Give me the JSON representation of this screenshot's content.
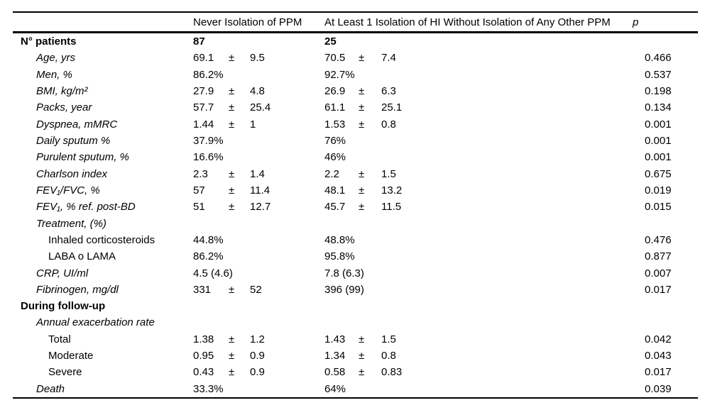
{
  "colors": {
    "background": "#ffffff",
    "text": "#000000",
    "rule": "#000000"
  },
  "table": {
    "headers": {
      "col1": "",
      "col2": "Never Isolation of PPM",
      "col3": "At Least 1 Isolation of HI Without Isolation of Any Other PPM",
      "p": "p"
    },
    "rows": [
      {
        "label": "N° patients",
        "style": "bold",
        "indent": 0,
        "values_bold": true,
        "c2": {
          "val": "87"
        },
        "c3": {
          "val": "25"
        },
        "p": ""
      },
      {
        "label": "Age, yrs",
        "style": "italic",
        "indent": 1,
        "c2": {
          "val": "69.1",
          "pm": "±",
          "sd": "9.5"
        },
        "c3": {
          "val": "70.5",
          "pm": "±",
          "sd": "7.4"
        },
        "p": "0.466"
      },
      {
        "label": "Men, %",
        "style": "italic",
        "indent": 1,
        "c2": {
          "val": "86.2%"
        },
        "c3": {
          "val": "92.7%"
        },
        "p": "0.537"
      },
      {
        "label": "BMI, kg/m²",
        "style": "italic",
        "indent": 1,
        "c2": {
          "val": "27.9",
          "pm": "±",
          "sd": "4.8"
        },
        "c3": {
          "val": "26.9",
          "pm": "±",
          "sd": "6.3"
        },
        "p": "0.198"
      },
      {
        "label": "Packs, year",
        "style": "italic",
        "indent": 1,
        "c2": {
          "val": "57.7",
          "pm": "±",
          "sd": "25.4"
        },
        "c3": {
          "val": "61.1",
          "pm": "±",
          "sd": "25.1"
        },
        "p": "0.134"
      },
      {
        "label": "Dyspnea, mMRC",
        "style": "italic",
        "indent": 1,
        "c2": {
          "val": "1.44",
          "pm": "±",
          "sd": "1"
        },
        "c3": {
          "val": "1.53",
          "pm": "±",
          "sd": "0.8"
        },
        "p": "0.001"
      },
      {
        "label": "Daily sputum %",
        "style": "italic",
        "indent": 1,
        "c2": {
          "val": "37.9%"
        },
        "c3": {
          "val": "76%"
        },
        "p": "0.001"
      },
      {
        "label": "Purulent sputum, %",
        "style": "italic",
        "indent": 1,
        "c2": {
          "val": "16.6%"
        },
        "c3": {
          "val": "46%"
        },
        "p": "0.001"
      },
      {
        "label": "Charlson index",
        "style": "italic",
        "indent": 1,
        "c2": {
          "val": "2.3",
          "pm": "±",
          "sd": "1.4"
        },
        "c3": {
          "val": "2.2",
          "pm": "±",
          "sd": "1.5"
        },
        "p": "0.675"
      },
      {
        "label": "FEV₁/FVC, %",
        "style": "italic",
        "indent": 1,
        "c2": {
          "val": "57",
          "pm": "±",
          "sd": "11.4"
        },
        "c3": {
          "val": "48.1",
          "pm": "±",
          "sd": "13.2"
        },
        "p": "0.019"
      },
      {
        "label": "FEV₁, % ref. post-BD",
        "style": "italic",
        "indent": 1,
        "c2": {
          "val": "51",
          "pm": "±",
          "sd": "12.7"
        },
        "c3": {
          "val": "45.7",
          "pm": "±",
          "sd": "11.5"
        },
        "p": "0.015"
      },
      {
        "label": "Treatment, (%)",
        "style": "italic",
        "indent": 1,
        "c2": {},
        "c3": {},
        "p": ""
      },
      {
        "label": "Inhaled corticosteroids",
        "style": "normal",
        "indent": 2,
        "c2": {
          "val": "44.8%"
        },
        "c3": {
          "val": "48.8%"
        },
        "p": "0.476"
      },
      {
        "label": "LABA o LAMA",
        "style": "normal",
        "indent": 2,
        "c2": {
          "val": "86.2%"
        },
        "c3": {
          "val": "95.8%"
        },
        "p": "0.877"
      },
      {
        "label": "CRP, UI/ml",
        "style": "italic",
        "indent": 1,
        "c2": {
          "val": "4.5 (4.6)"
        },
        "c3": {
          "val": "7.8 (6.3)"
        },
        "p": "0.007"
      },
      {
        "label": "Fibrinogen, mg/dl",
        "style": "italic",
        "indent": 1,
        "c2": {
          "val": "331",
          "pm": "±",
          "sd": "52"
        },
        "c3": {
          "val": "396 (99)"
        },
        "p": "0.017"
      },
      {
        "label": "During follow-up",
        "style": "bold",
        "indent": 0,
        "c2": {},
        "c3": {},
        "p": ""
      },
      {
        "label": "Annual exacerbation rate",
        "style": "italic",
        "indent": 1,
        "c2": {},
        "c3": {},
        "p": ""
      },
      {
        "label": "Total",
        "style": "normal",
        "indent": 2,
        "c2": {
          "val": "1.38",
          "pm": "±",
          "sd": "1.2"
        },
        "c3": {
          "val": "1.43",
          "pm": "±",
          "sd": "1.5"
        },
        "p": "0.042"
      },
      {
        "label": "Moderate",
        "style": "normal",
        "indent": 2,
        "c2": {
          "val": "0.95",
          "pm": "±",
          "sd": "0.9"
        },
        "c3": {
          "val": "1.34",
          "pm": "±",
          "sd": "0.8"
        },
        "p": "0.043"
      },
      {
        "label": "Severe",
        "style": "normal",
        "indent": 2,
        "c2": {
          "val": "0.43",
          "pm": "±",
          "sd": "0.9"
        },
        "c3": {
          "val": "0.58",
          "pm": "±",
          "sd": "0.83"
        },
        "p": "0.017"
      },
      {
        "label": "Death",
        "style": "italic",
        "indent": 1,
        "c2": {
          "val": "33.3%"
        },
        "c3": {
          "val": "64%"
        },
        "p": "0.039"
      }
    ]
  }
}
